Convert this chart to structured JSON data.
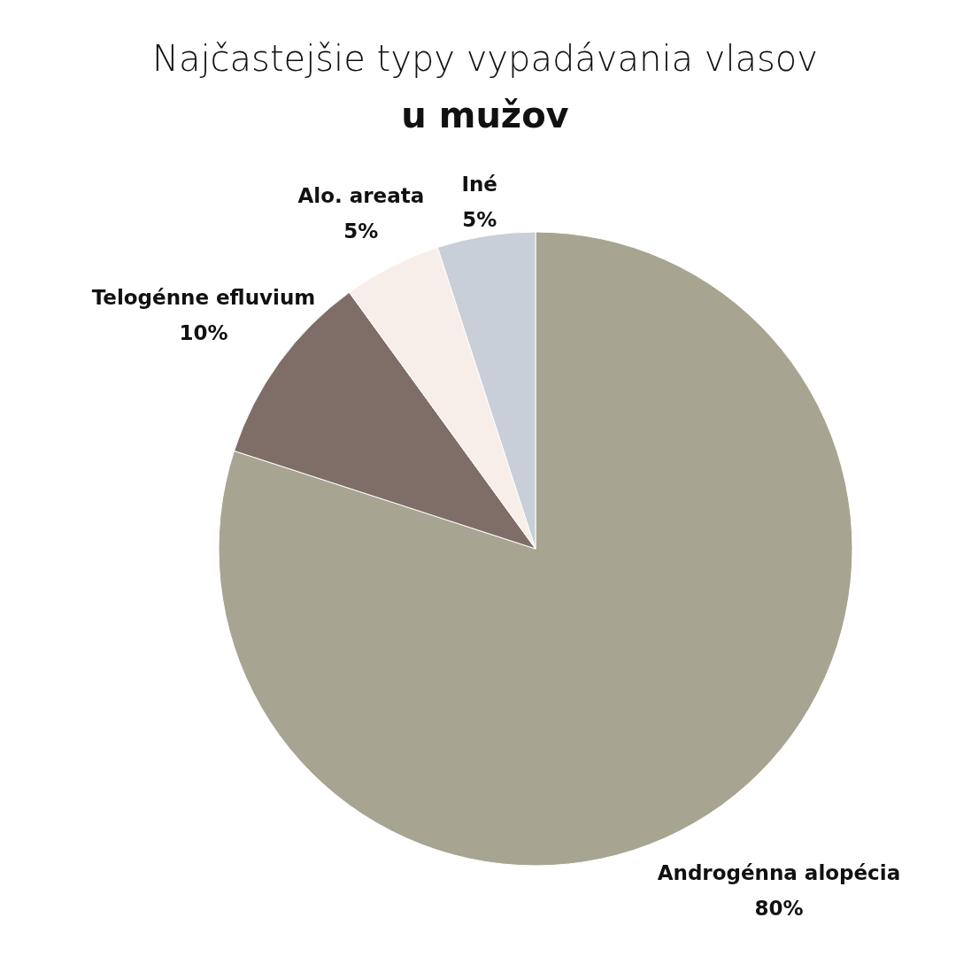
{
  "chart_data": {
    "type": "pie",
    "title": "Najčastejšie typy vypadávania vlasov",
    "subtitle": "u mužov",
    "categories": [
      "Androgénna alopécia",
      "Telogénne efluvium",
      "Alo. areata",
      "Iné"
    ],
    "values": [
      80,
      10,
      5,
      5
    ],
    "value_labels": [
      "80%",
      "10%",
      "5%",
      "5%"
    ],
    "colors": [
      "#a7a491",
      "#7f6e68",
      "#f7eeea",
      "#c8cfd8"
    ]
  }
}
